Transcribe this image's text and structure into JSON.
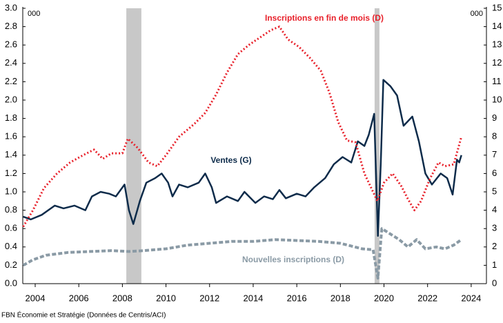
{
  "chart_data": {
    "type": "line",
    "y_label": "000",
    "y2_label": "000",
    "source": "FBN Économie et Stratégie (Données de Centris/ACI)",
    "xlim": [
      2003.43,
      2024.7
    ],
    "xticks": [
      2004,
      2006,
      2008,
      2010,
      2012,
      2014,
      2016,
      2018,
      2020,
      2022,
      2024
    ],
    "ylim": [
      0,
      3
    ],
    "yticks": [
      {
        "value": 0,
        "label": "0.0"
      },
      {
        "value": 0.2,
        "label": "0.2"
      },
      {
        "value": 0.4,
        "label": "0.4"
      },
      {
        "value": 0.6,
        "label": "0.6"
      },
      {
        "value": 0.8,
        "label": "0.8"
      },
      {
        "value": 1,
        "label": "1.0"
      },
      {
        "value": 1.2,
        "label": "1.2"
      },
      {
        "value": 1.4,
        "label": "1.4"
      },
      {
        "value": 1.6,
        "label": "1.6"
      },
      {
        "value": 1.8,
        "label": "1.8"
      },
      {
        "value": 2,
        "label": "2.0"
      },
      {
        "value": 2.2,
        "label": "2.2"
      },
      {
        "value": 2.4,
        "label": "2.4"
      },
      {
        "value": 2.6,
        "label": "2.6"
      },
      {
        "value": 2.8,
        "label": "2.8"
      },
      {
        "value": 3,
        "label": "3.0"
      }
    ],
    "y2lim": [
      0,
      15
    ],
    "y2ticks": [
      0,
      1,
      2,
      3,
      4,
      5,
      6,
      7,
      8,
      9,
      10,
      11,
      12,
      13,
      14,
      15
    ],
    "shaded_periods": [
      [
        2008.18,
        2008.87
      ],
      [
        2019.57,
        2019.79
      ]
    ],
    "shade_color": "#c8c8c8",
    "series": [
      {
        "name": "Ventes (G)",
        "color": "#0d2b4a",
        "style": "solid",
        "x": [
          2003.45,
          2003.8,
          2004.3,
          2004.9,
          2005.3,
          2005.8,
          2006.3,
          2006.6,
          2007,
          2007.4,
          2007.7,
          2008.1,
          2008.3,
          2008.5,
          2008.8,
          2009.1,
          2009.5,
          2009.8,
          2010.1,
          2010.3,
          2010.6,
          2011,
          2011.5,
          2011.8,
          2012.1,
          2012.3,
          2012.8,
          2013.3,
          2013.6,
          2014.1,
          2014.5,
          2014.9,
          2015.2,
          2015.5,
          2016,
          2016.4,
          2016.8,
          2017.3,
          2017.7,
          2018.1,
          2018.5,
          2018.8,
          2019.1,
          2019.3,
          2019.55,
          2019.72,
          2019.85,
          2019.97,
          2020.3,
          2020.6,
          2020.9,
          2021.3,
          2021.6,
          2021.9,
          2022.2,
          2022.6,
          2022.9,
          2023.15,
          2023.35,
          2023.45,
          2023.55
        ],
        "values": [
          0.73,
          0.7,
          0.75,
          0.85,
          0.82,
          0.85,
          0.8,
          0.95,
          1.0,
          0.98,
          0.95,
          1.08,
          0.8,
          0.65,
          0.9,
          1.1,
          1.15,
          1.2,
          1.1,
          0.95,
          1.08,
          1.05,
          1.1,
          1.2,
          1.05,
          0.88,
          0.95,
          0.9,
          1.0,
          0.88,
          0.95,
          0.92,
          1.02,
          0.93,
          0.98,
          0.95,
          1.05,
          1.15,
          1.3,
          1.38,
          1.32,
          1.55,
          1.5,
          1.62,
          1.85,
          0.52,
          1.3,
          2.22,
          2.15,
          2.05,
          1.72,
          1.82,
          1.55,
          1.2,
          1.08,
          1.2,
          1.15,
          0.97,
          1.35,
          1.32,
          1.4
        ]
      },
      {
        "name": "Inscriptions en fin de mois (D)",
        "color": "#e8202a",
        "style": "dotted",
        "axis": "y2",
        "x": [
          2003.45,
          2003.9,
          2004.4,
          2005,
          2005.6,
          2006.2,
          2006.7,
          2007.1,
          2007.5,
          2008,
          2008.25,
          2008.7,
          2009.2,
          2009.6,
          2010,
          2010.6,
          2011.3,
          2011.8,
          2012.3,
          2012.8,
          2013.3,
          2013.8,
          2014.3,
          2014.8,
          2015.2,
          2015.6,
          2016.1,
          2016.6,
          2017.1,
          2017.5,
          2017.9,
          2018.3,
          2018.7,
          2019.1,
          2019.7,
          2020,
          2020.4,
          2020.8,
          2021.1,
          2021.4,
          2021.7,
          2022.1,
          2022.5,
          2022.8,
          2023.2,
          2023.55
        ],
        "values": [
          3.1,
          4.0,
          5.2,
          6.0,
          6.6,
          7.0,
          7.3,
          6.8,
          7.1,
          7.1,
          7.9,
          7.4,
          6.6,
          6.4,
          7.0,
          8.0,
          8.7,
          9.3,
          10.3,
          11.5,
          12.5,
          13.0,
          13.4,
          13.8,
          14.0,
          13.3,
          12.9,
          12.3,
          11.6,
          10.4,
          8.8,
          7.8,
          7.7,
          6.0,
          4.5,
          5.5,
          6.0,
          5.3,
          4.6,
          4.0,
          4.5,
          5.7,
          6.6,
          6.4,
          6.5,
          8.0
        ]
      },
      {
        "name": "Nouvelles inscriptions (D)",
        "color": "#8a9aa5",
        "style": "dashed",
        "axis": "y2",
        "x": [
          2003.45,
          2003.9,
          2004.5,
          2005.5,
          2006.5,
          2007.5,
          2008.3,
          2009,
          2010,
          2011,
          2012,
          2013,
          2014,
          2015,
          2016,
          2017,
          2018,
          2019,
          2019.5,
          2019.72,
          2019.9,
          2020.3,
          2020.7,
          2021.1,
          2021.5,
          2021.9,
          2022.4,
          2022.8,
          2023.2,
          2023.55
        ],
        "values": [
          1.0,
          1.3,
          1.55,
          1.7,
          1.75,
          1.8,
          1.75,
          1.8,
          1.9,
          2.1,
          2.2,
          2.3,
          2.3,
          2.4,
          2.35,
          2.3,
          2.2,
          1.9,
          1.85,
          0.3,
          3.0,
          2.7,
          2.4,
          2.0,
          2.4,
          1.9,
          2.0,
          1.9,
          2.1,
          2.4
        ]
      }
    ]
  }
}
